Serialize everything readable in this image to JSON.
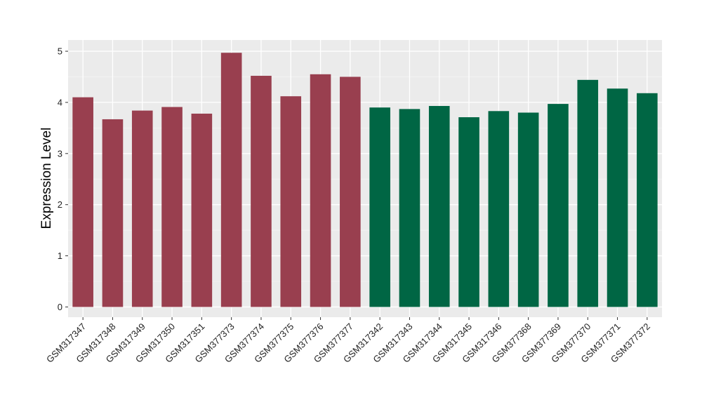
{
  "chart_data": {
    "type": "bar",
    "ylabel": "Expression Level",
    "xlabel": "",
    "ylim": [
      -0.2,
      5.22
    ],
    "yticks": [
      0,
      1,
      2,
      3,
      4,
      5
    ],
    "grid": true,
    "background": "#ebebeb",
    "categories": [
      "GSM317347",
      "GSM317348",
      "GSM317349",
      "GSM317350",
      "GSM317351",
      "GSM377373",
      "GSM377374",
      "GSM377375",
      "GSM377376",
      "GSM377377",
      "GSM317342",
      "GSM317343",
      "GSM317344",
      "GSM317345",
      "GSM317346",
      "GSM377368",
      "GSM377369",
      "GSM377370",
      "GSM377371",
      "GSM377372"
    ],
    "values": [
      4.1,
      3.67,
      3.84,
      3.91,
      3.78,
      4.97,
      4.52,
      4.12,
      4.55,
      4.5,
      3.9,
      3.87,
      3.93,
      3.71,
      3.83,
      3.8,
      3.97,
      4.44,
      4.27,
      4.18
    ],
    "colors": [
      "#993f4f",
      "#993f4f",
      "#993f4f",
      "#993f4f",
      "#993f4f",
      "#993f4f",
      "#993f4f",
      "#993f4f",
      "#993f4f",
      "#993f4f",
      "#006644",
      "#006644",
      "#006644",
      "#006644",
      "#006644",
      "#006644",
      "#006644",
      "#006644",
      "#006644",
      "#006644"
    ]
  }
}
